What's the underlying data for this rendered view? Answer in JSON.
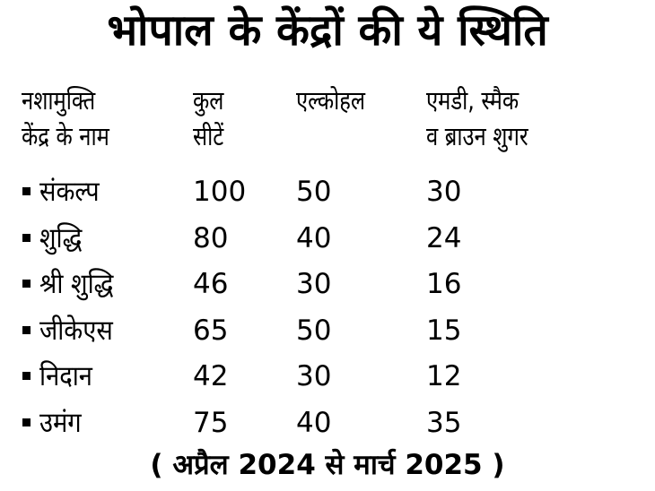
{
  "title": "भोपाल के केंद्रों की ये स्थिति",
  "headers": {
    "center": [
      "नशामुक्ति",
      "केंद्र के नाम"
    ],
    "total_seats": [
      "कुल",
      "सीटें"
    ],
    "alcohol": [
      "एल्कोहल"
    ],
    "drugs": [
      "एमडी, स्मैक",
      "व ब्राउन शुगर"
    ]
  },
  "rows": [
    {
      "name": "संकल्प",
      "total": "100",
      "alcohol": "50",
      "drugs": "30"
    },
    {
      "name": "शुद्धि",
      "total": "80",
      "alcohol": "40",
      "drugs": "24"
    },
    {
      "name": "श्री शुद्धि",
      "total": "46",
      "alcohol": "30",
      "drugs": "16"
    },
    {
      "name": "जीकेएस",
      "total": "65",
      "alcohol": "50",
      "drugs": "15"
    },
    {
      "name": "निदान",
      "total": "42",
      "alcohol": "30",
      "drugs": "12"
    },
    {
      "name": "उमंग",
      "total": "75",
      "alcohol": "40",
      "drugs": "35"
    }
  ],
  "footer": "( अप्रैल 2024 से मार्च 2025 )"
}
